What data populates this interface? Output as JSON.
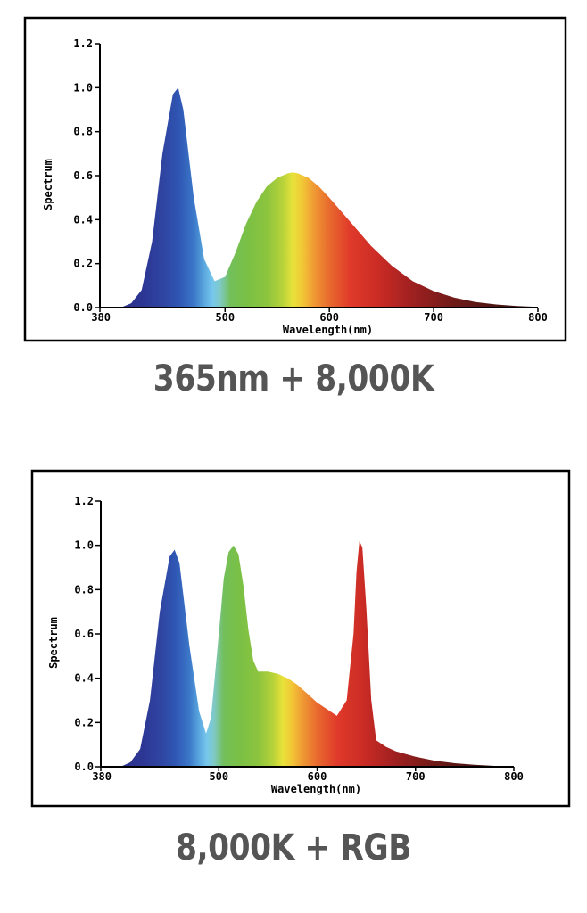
{
  "chart_data": [
    {
      "type": "area",
      "caption": "365nm + 8,000K",
      "xlabel": "Wavelength(nm)",
      "ylabel": "Spectrum",
      "xlim": [
        380,
        800
      ],
      "ylim": [
        0,
        1.2
      ],
      "xticks": [
        "380",
        "500",
        "600",
        "700",
        "800"
      ],
      "yticks": [
        "0.0",
        "0.2",
        "0.4",
        "0.6",
        "0.8",
        "1.0",
        "1.2"
      ],
      "series": [
        {
          "x": [
            380,
            400,
            410,
            420,
            430,
            440,
            450,
            455,
            460,
            470,
            480,
            490,
            500,
            510,
            520,
            530,
            540,
            550,
            560,
            565,
            570,
            580,
            590,
            600,
            620,
            640,
            660,
            680,
            700,
            720,
            740,
            760,
            780,
            800
          ],
          "values": [
            0,
            0,
            0.02,
            0.08,
            0.3,
            0.7,
            0.97,
            1.0,
            0.9,
            0.5,
            0.22,
            0.12,
            0.14,
            0.25,
            0.38,
            0.48,
            0.55,
            0.59,
            0.61,
            0.615,
            0.61,
            0.59,
            0.55,
            0.5,
            0.39,
            0.28,
            0.19,
            0.12,
            0.075,
            0.045,
            0.025,
            0.014,
            0.007,
            0.003
          ]
        }
      ]
    },
    {
      "type": "area",
      "caption": "8,000K + RGB",
      "xlabel": "Wavelength(nm)",
      "ylabel": "Spectrum",
      "xlim": [
        380,
        800
      ],
      "ylim": [
        0,
        1.2
      ],
      "xticks": [
        "380",
        "500",
        "600",
        "700",
        "800"
      ],
      "yticks": [
        "0.0",
        "0.2",
        "0.4",
        "0.6",
        "0.8",
        "1.0",
        "1.2"
      ],
      "series": [
        {
          "x": [
            380,
            400,
            410,
            420,
            430,
            440,
            450,
            455,
            460,
            470,
            480,
            487,
            492,
            500,
            505,
            510,
            515,
            520,
            525,
            530,
            535,
            540,
            550,
            560,
            570,
            580,
            590,
            600,
            610,
            620,
            630,
            637,
            640,
            643,
            646,
            650,
            655,
            660,
            670,
            680,
            700,
            720,
            740,
            760,
            780,
            800
          ],
          "values": [
            0,
            0,
            0.02,
            0.08,
            0.3,
            0.7,
            0.95,
            0.98,
            0.92,
            0.55,
            0.25,
            0.15,
            0.22,
            0.6,
            0.85,
            0.97,
            1.0,
            0.96,
            0.82,
            0.62,
            0.48,
            0.43,
            0.43,
            0.42,
            0.4,
            0.37,
            0.33,
            0.29,
            0.26,
            0.23,
            0.3,
            0.6,
            0.88,
            1.02,
            0.99,
            0.72,
            0.3,
            0.12,
            0.09,
            0.07,
            0.045,
            0.027,
            0.016,
            0.009,
            0.004,
            0.002
          ]
        }
      ]
    }
  ]
}
